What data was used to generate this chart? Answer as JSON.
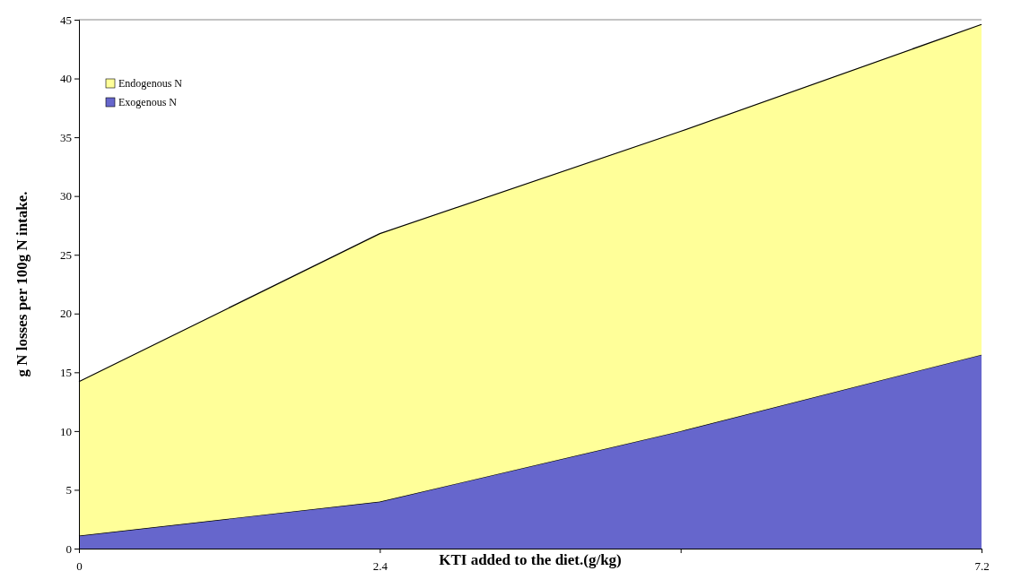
{
  "chart_data": {
    "type": "area",
    "xlabel": "KTI added to the diet.(g/kg)",
    "ylabel": "g N losses per 100g N intake.",
    "categories": [
      "0",
      "2.4",
      null,
      "7.2"
    ],
    "stacked": true,
    "ylim": [
      0,
      45
    ],
    "yticks": [
      0,
      5,
      10,
      15,
      20,
      25,
      30,
      35,
      40,
      45
    ],
    "legend": "top left",
    "series": [
      {
        "name": "Exogenous N",
        "color": "#6666cc",
        "values": [
          1.1,
          4.0,
          10.0,
          16.5
        ]
      },
      {
        "name": "Endogenous N",
        "color": "#ffff99",
        "values": [
          13.1,
          22.8,
          25.5,
          28.1
        ]
      }
    ]
  }
}
